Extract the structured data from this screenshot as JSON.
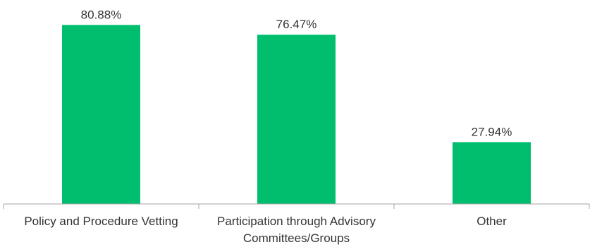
{
  "chart_data": {
    "type": "bar",
    "categories": [
      [
        "Policy and Procedure Vetting"
      ],
      [
        "Participation through Advisory",
        "Committees/Groups"
      ],
      [
        "Other"
      ]
    ],
    "values": [
      80.88,
      76.47,
      27.94
    ],
    "value_labels": [
      "80.88%",
      "76.47%",
      "27.94%"
    ],
    "title": "",
    "xlabel": "",
    "ylabel": "",
    "ylim": [
      0,
      100
    ],
    "grid": false,
    "legend": "none",
    "bar_color": "#00be6e",
    "axis_color": "#a6a6a6",
    "text_color": "#333333"
  }
}
